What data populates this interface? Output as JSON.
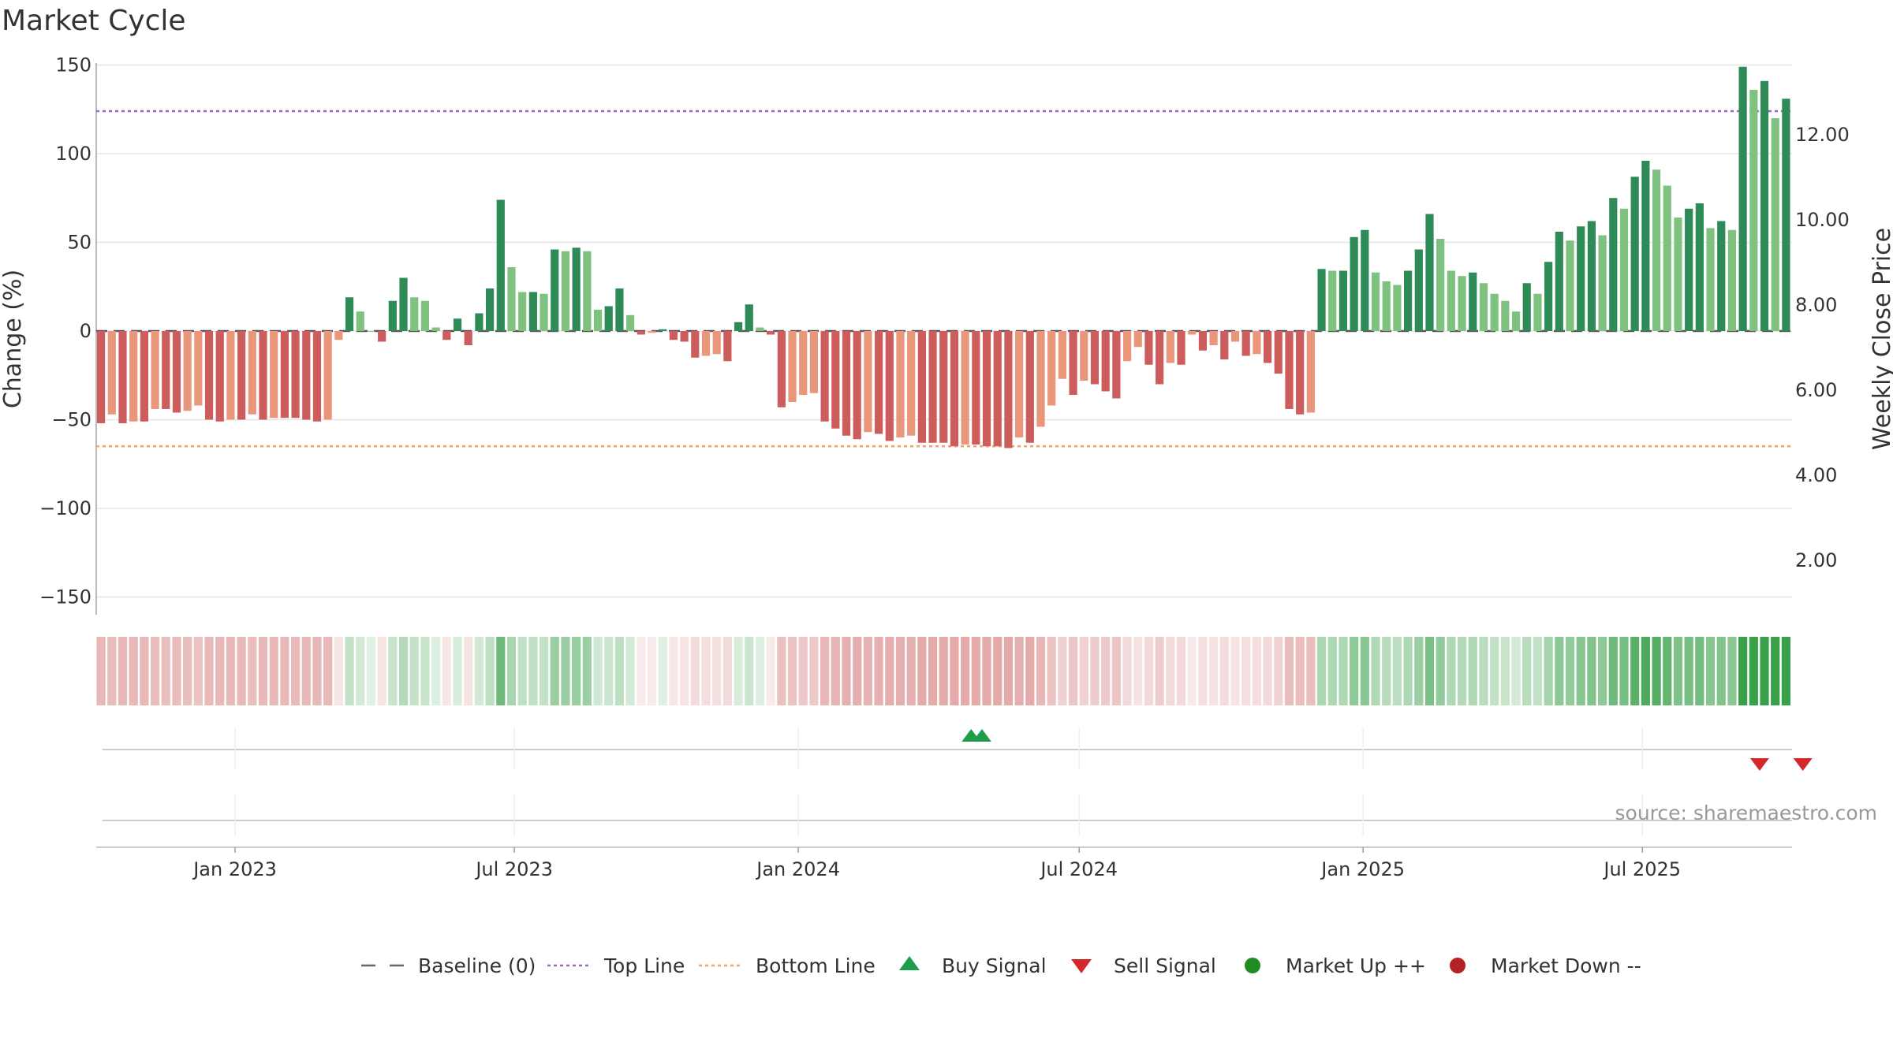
{
  "chart_data": {
    "type": "bar",
    "title": "Market Cycle",
    "ylabel": "Change (%)",
    "y2label": "Weekly Close Price",
    "ylim": [
      -160,
      160
    ],
    "y2lim": [
      0.72,
      14.06
    ],
    "yticks": [
      "150",
      "100",
      "50",
      "0",
      "−50",
      "−100",
      "−150"
    ],
    "yticks_values": [
      150,
      100,
      50,
      0,
      -50,
      -100,
      -150
    ],
    "y2ticks": [
      "12.00",
      "10.00",
      "8.00",
      "6.00",
      "4.00",
      "2.00"
    ],
    "y2ticks_values": [
      12,
      10,
      8,
      6,
      4,
      2
    ],
    "x_start": "2022-10-03",
    "x_ticks": [
      {
        "label": "Jan 2023",
        "date": "2023-01-01"
      },
      {
        "label": "Jul 2023",
        "date": "2023-07-01"
      },
      {
        "label": "Jan 2024",
        "date": "2024-01-01"
      },
      {
        "label": "Jul 2024",
        "date": "2024-07-01"
      },
      {
        "label": "Jan 2025",
        "date": "2025-01-01"
      },
      {
        "label": "Jul 2025",
        "date": "2025-07-01"
      }
    ],
    "top_line": 124,
    "bottom_line": -65,
    "values": [
      -52,
      -47,
      -52,
      -51,
      -51,
      -44,
      -44,
      -46,
      -45,
      -42,
      -50,
      -51,
      -50,
      -50,
      -47,
      -50,
      -49,
      -49,
      -49,
      -50,
      -51,
      -50,
      -5,
      19,
      11,
      0,
      -6,
      17,
      30,
      19,
      17,
      2,
      -5,
      7,
      -8,
      10,
      24,
      74,
      36,
      22,
      22,
      21,
      46,
      45,
      47,
      45,
      12,
      14,
      24,
      9,
      -2,
      -1,
      1,
      -5,
      -6,
      -15,
      -14,
      -13,
      -17,
      5,
      15,
      2,
      -2,
      -43,
      -40,
      -36,
      -35,
      -51,
      -55,
      -59,
      -61,
      -57,
      -58,
      -62,
      -60,
      -59,
      -63,
      -63,
      -63,
      -65,
      -64,
      -64,
      -65,
      -65,
      -66,
      -60,
      -63,
      -54,
      -42,
      -27,
      -36,
      -28,
      -30,
      -34,
      -38,
      -17,
      -9,
      -19,
      -30,
      -18,
      -19,
      -2,
      -11,
      -8,
      -16,
      -6,
      -14,
      -13,
      -18,
      -24,
      -44,
      -47,
      -46,
      35,
      34,
      34,
      53,
      57,
      33,
      28,
      26,
      34,
      46,
      66,
      52,
      34,
      31,
      33,
      27,
      21,
      17,
      11,
      27,
      21,
      39,
      56,
      51,
      59,
      62,
      54,
      75,
      69,
      87,
      96,
      91,
      82,
      64,
      69,
      72,
      58,
      62,
      57,
      149,
      136,
      141,
      120,
      131
    ],
    "bar_colors": "green dark/light and red dark/light by change direction",
    "colors": {
      "up_dark": "#2e8b57",
      "up_light": "#7fc27f",
      "down_dark": "#cd5c5c",
      "down_light": "#e9967a",
      "top_line": "#9966cc",
      "bottom_line": "#f4a460",
      "buy": "#1e9e4a",
      "sell": "#d62728",
      "market_up": "#228b22",
      "market_down": "#b22222",
      "baseline": "#555555"
    },
    "buy_signals": [
      "2024-04-22",
      "2024-04-29"
    ],
    "sell_signals": [
      "2025-09-15",
      "2025-10-13"
    ],
    "legend": [
      {
        "label": "Baseline (0)",
        "symbol": "dash"
      },
      {
        "label": "Top Line",
        "symbol": "dotted-purple"
      },
      {
        "label": "Bottom Line",
        "symbol": "dotted-orange"
      },
      {
        "label": "Buy Signal",
        "symbol": "triangle-up"
      },
      {
        "label": "Sell Signal",
        "symbol": "triangle-down"
      },
      {
        "label": "Market Up ++",
        "symbol": "circle-green"
      },
      {
        "label": "Market Down --",
        "symbol": "circle-red"
      }
    ],
    "legend_position": "bottom",
    "grid": true
  },
  "source": "source: sharemaestro.com"
}
